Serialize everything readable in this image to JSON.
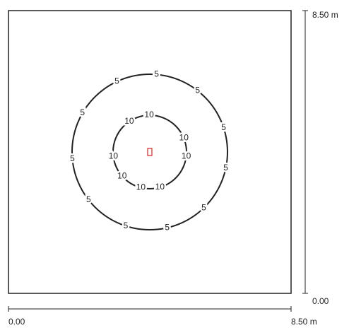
{
  "dimensions": {
    "right_top": "8.50 m",
    "right_bottom": "0.00",
    "bottom_left": "0.00",
    "bottom_right": "8.50 m"
  },
  "contours": [
    {
      "labels": [
        "5",
        "5",
        "5",
        "5",
        "5",
        "5",
        "5",
        "5",
        "5",
        "5",
        "5"
      ]
    },
    {
      "labels": [
        "10",
        "10",
        "10",
        "10",
        "10",
        "10",
        "10",
        "10"
      ]
    }
  ]
}
